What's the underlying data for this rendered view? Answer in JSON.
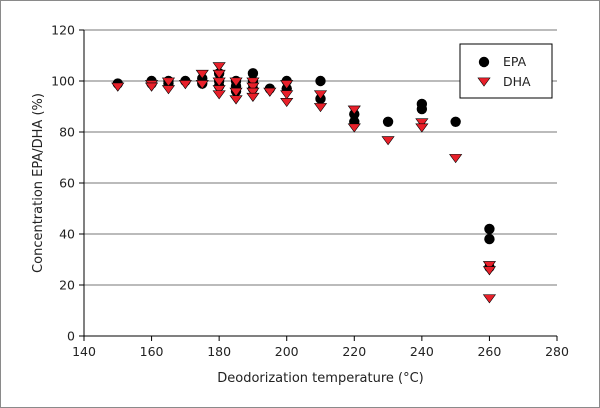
{
  "chart_data": {
    "type": "scatter",
    "title": "",
    "xlabel": "Deodorization temperature (°C)",
    "ylabel": "Concentration EPA/DHA (%)",
    "xlim": [
      140,
      280
    ],
    "ylim": [
      0,
      120
    ],
    "xticks": [
      "140",
      "160",
      "180",
      "200",
      "220",
      "240",
      "260",
      "280"
    ],
    "yticks": [
      "0",
      "20",
      "40",
      "60",
      "80",
      "100",
      "120"
    ],
    "grid": "horizontal",
    "legend_position": "top-right",
    "series": [
      {
        "name": "EPA",
        "marker": "circle",
        "color": "#000000",
        "points": [
          [
            150,
            99
          ],
          [
            160,
            99
          ],
          [
            160,
            100
          ],
          [
            165,
            99
          ],
          [
            165,
            100
          ],
          [
            170,
            100
          ],
          [
            175,
            99
          ],
          [
            175,
            101
          ],
          [
            180,
            100
          ],
          [
            180,
            103
          ],
          [
            180,
            98
          ],
          [
            185,
            98
          ],
          [
            185,
            96
          ],
          [
            185,
            100
          ],
          [
            190,
            103
          ],
          [
            190,
            100
          ],
          [
            190,
            97
          ],
          [
            190,
            99
          ],
          [
            195,
            97
          ],
          [
            200,
            100
          ],
          [
            200,
            97
          ],
          [
            210,
            100
          ],
          [
            210,
            93
          ],
          [
            220,
            87
          ],
          [
            220,
            84
          ],
          [
            230,
            84
          ],
          [
            240,
            91
          ],
          [
            240,
            89
          ],
          [
            250,
            84
          ],
          [
            260,
            42
          ],
          [
            260,
            38
          ],
          [
            260,
            27
          ]
        ]
      },
      {
        "name": "DHA",
        "marker": "triangle-down",
        "color": "#e8202a",
        "points": [
          [
            150,
            98
          ],
          [
            160,
            99
          ],
          [
            160,
            98
          ],
          [
            165,
            100
          ],
          [
            165,
            97
          ],
          [
            170,
            99
          ],
          [
            175,
            103
          ],
          [
            175,
            99
          ],
          [
            180,
            106
          ],
          [
            180,
            103
          ],
          [
            180,
            100
          ],
          [
            180,
            97
          ],
          [
            180,
            95
          ],
          [
            185,
            100
          ],
          [
            185,
            96
          ],
          [
            185,
            93
          ],
          [
            190,
            100
          ],
          [
            190,
            98
          ],
          [
            190,
            96
          ],
          [
            190,
            94
          ],
          [
            195,
            96
          ],
          [
            200,
            99
          ],
          [
            200,
            95
          ],
          [
            200,
            92
          ],
          [
            210,
            95
          ],
          [
            210,
            90
          ],
          [
            220,
            89
          ],
          [
            220,
            82
          ],
          [
            230,
            77
          ],
          [
            240,
            84
          ],
          [
            240,
            82
          ],
          [
            250,
            70
          ],
          [
            260,
            28
          ],
          [
            260,
            26
          ],
          [
            260,
            15
          ]
        ]
      }
    ]
  }
}
